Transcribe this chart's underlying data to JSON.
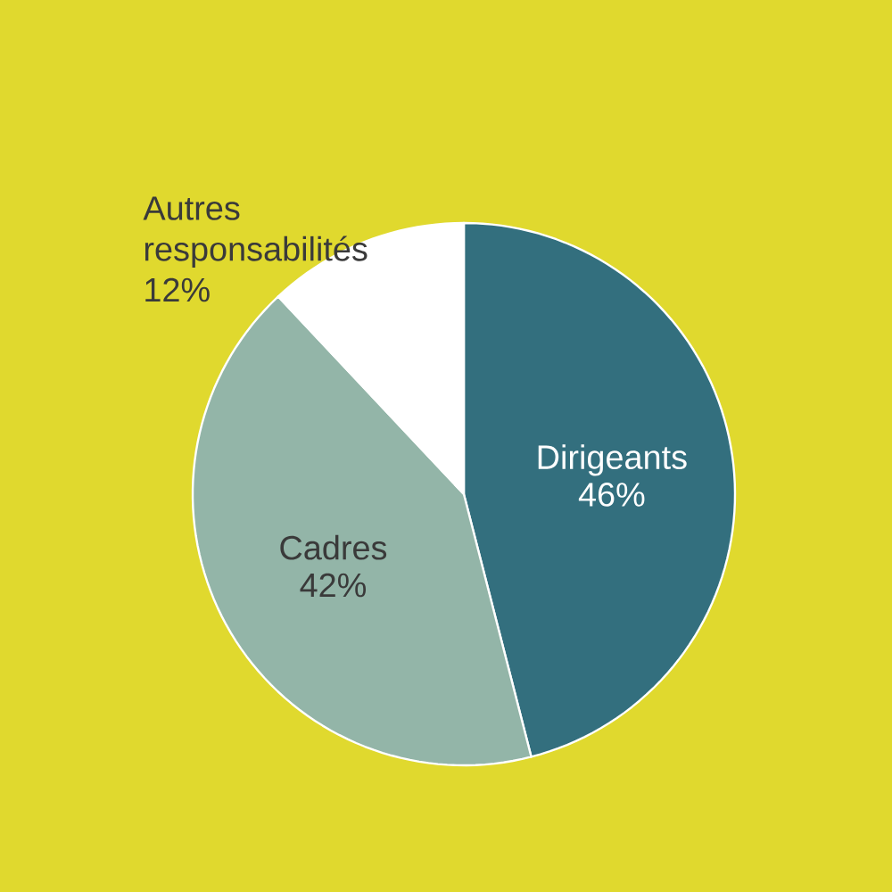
{
  "chart_data": {
    "type": "pie",
    "categories": [
      "Dirigeants",
      "Cadres",
      "Autres responsabilités"
    ],
    "values": [
      46,
      42,
      12
    ],
    "value_labels": [
      "46%",
      "42%",
      "12%"
    ],
    "colors": [
      "#336f7e",
      "#93b5a8",
      "#ffffff"
    ]
  }
}
